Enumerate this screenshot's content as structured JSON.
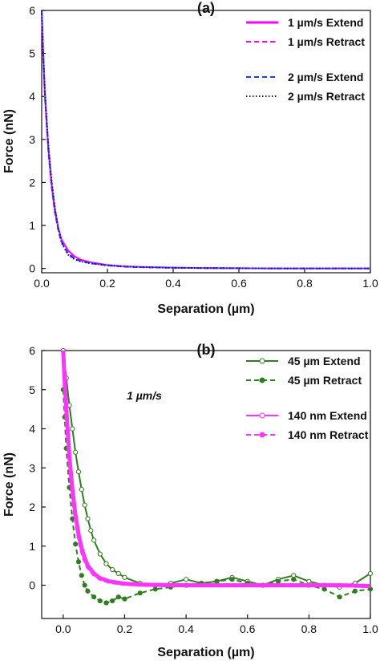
{
  "chart_data": [
    {
      "type": "line",
      "title": "(a)",
      "xlabel": "Separation (µm)",
      "ylabel": "Force (nN)",
      "xlim": [
        0,
        1
      ],
      "ylim": [
        -0.1,
        6
      ],
      "xticks": [
        0.0,
        0.2,
        0.4,
        0.6,
        0.8,
        1.0
      ],
      "xtick_labels": [
        "0.0",
        "0.2",
        "0.4",
        "0.6",
        "0.8",
        "1.0"
      ],
      "yticks": [
        0,
        1,
        2,
        3,
        4,
        5,
        6
      ],
      "ytick_labels": [
        "0",
        "1",
        "2",
        "3",
        "4",
        "5",
        "6"
      ],
      "grid": false,
      "legend_position": "top-right",
      "series": [
        {
          "name": "1 µm/s Extend",
          "color": "#ff00ff",
          "style": "solid",
          "x": [
            0.0,
            0.005,
            0.01,
            0.02,
            0.03,
            0.04,
            0.05,
            0.06,
            0.08,
            0.1,
            0.12,
            0.15,
            0.2,
            0.25,
            0.3,
            0.4,
            0.5,
            0.6,
            0.7,
            0.8,
            0.9,
            1.0
          ],
          "y": [
            6.0,
            4.9,
            4.0,
            2.8,
            1.95,
            1.35,
            0.95,
            0.68,
            0.42,
            0.28,
            0.2,
            0.14,
            0.08,
            0.05,
            0.035,
            0.02,
            0.01,
            0.005,
            0.0,
            0.0,
            0.0,
            0.0
          ]
        },
        {
          "name": "1 µm/s Retract",
          "color": "#ff00ff",
          "style": "dashed",
          "x": [
            0.0,
            0.005,
            0.01,
            0.02,
            0.03,
            0.04,
            0.05,
            0.06,
            0.08,
            0.1,
            0.12,
            0.15,
            0.2,
            0.25,
            0.3,
            0.4,
            0.5,
            0.6,
            0.7,
            0.8,
            0.9,
            1.0
          ],
          "y": [
            6.0,
            4.85,
            3.95,
            2.75,
            1.9,
            1.3,
            0.9,
            0.62,
            0.38,
            0.25,
            0.18,
            0.12,
            0.07,
            0.04,
            0.03,
            0.015,
            0.008,
            0.004,
            0.0,
            0.0,
            0.0,
            0.0
          ]
        },
        {
          "name": "2 µm/s Extend",
          "color": "#1f3cff",
          "style": "dashed",
          "x": [
            0.0,
            0.005,
            0.01,
            0.02,
            0.03,
            0.04,
            0.05,
            0.06,
            0.08,
            0.1,
            0.12,
            0.15,
            0.2,
            0.25,
            0.3,
            0.4,
            0.5,
            0.6,
            0.7,
            0.8,
            0.9,
            1.0
          ],
          "y": [
            6.0,
            4.95,
            4.05,
            2.85,
            2.0,
            1.4,
            0.95,
            0.62,
            0.34,
            0.22,
            0.17,
            0.12,
            0.075,
            0.045,
            0.03,
            0.015,
            0.008,
            0.004,
            0.0,
            0.0,
            0.0,
            0.0
          ]
        },
        {
          "name": "2 µm/s Retract",
          "color": "#0a1a8c",
          "style": "dotted",
          "x": [
            0.0,
            0.005,
            0.01,
            0.02,
            0.03,
            0.04,
            0.05,
            0.06,
            0.08,
            0.1,
            0.12,
            0.15,
            0.2,
            0.25,
            0.3,
            0.4,
            0.5,
            0.6,
            0.7,
            0.8,
            0.9,
            1.0
          ],
          "y": [
            6.0,
            5.0,
            4.1,
            2.9,
            2.05,
            1.42,
            0.96,
            0.6,
            0.32,
            0.21,
            0.16,
            0.115,
            0.07,
            0.045,
            0.03,
            0.015,
            0.008,
            0.004,
            0.0,
            0.0,
            0.0,
            0.0
          ]
        }
      ]
    },
    {
      "type": "line",
      "title": "(b)",
      "annotation": "1 µm/s",
      "xlabel": "Separation (µm)",
      "ylabel": "Force (nN)",
      "xlim": [
        -0.07,
        1.0
      ],
      "ylim": [
        -0.85,
        6
      ],
      "xticks": [
        0.0,
        0.2,
        0.4,
        0.6,
        0.8,
        1.0
      ],
      "xtick_labels": [
        "0.0",
        "0.2",
        "0.4",
        "0.6",
        "0.8",
        "1.0"
      ],
      "yticks": [
        0,
        1,
        2,
        3,
        4,
        5,
        6
      ],
      "ytick_labels": [
        "0",
        "1",
        "2",
        "3",
        "4",
        "5",
        "6"
      ],
      "grid": false,
      "legend_position": "top-right",
      "series": [
        {
          "name": "45 µm Extend",
          "color": "#2e7d1e",
          "style": "solid-open-circles",
          "x": [
            0.0,
            0.01,
            0.02,
            0.03,
            0.04,
            0.05,
            0.06,
            0.07,
            0.08,
            0.09,
            0.1,
            0.12,
            0.14,
            0.16,
            0.18,
            0.2,
            0.25,
            0.3,
            0.35,
            0.4,
            0.45,
            0.5,
            0.55,
            0.6,
            0.65,
            0.7,
            0.75,
            0.8,
            0.85,
            0.9,
            0.95,
            1.0
          ],
          "y": [
            6.0,
            5.3,
            4.6,
            4.0,
            3.4,
            2.9,
            2.45,
            2.05,
            1.7,
            1.4,
            1.15,
            0.8,
            0.55,
            0.4,
            0.3,
            0.2,
            0.05,
            0.0,
            0.05,
            0.15,
            0.05,
            0.1,
            0.2,
            0.1,
            0.0,
            0.15,
            0.25,
            0.1,
            0.0,
            -0.05,
            0.05,
            0.3
          ]
        },
        {
          "name": "45 µm Retract",
          "color": "#2e7d1e",
          "style": "dashed-filled-circles",
          "x": [
            0.0,
            0.005,
            0.01,
            0.02,
            0.03,
            0.04,
            0.05,
            0.06,
            0.07,
            0.08,
            0.1,
            0.12,
            0.14,
            0.16,
            0.18,
            0.2,
            0.25,
            0.3,
            0.35,
            0.4,
            0.45,
            0.5,
            0.55,
            0.6,
            0.65,
            0.7,
            0.75,
            0.8,
            0.85,
            0.9,
            0.95,
            1.0
          ],
          "y": [
            5.0,
            4.3,
            3.5,
            2.5,
            1.7,
            1.05,
            0.6,
            0.25,
            0.0,
            -0.15,
            -0.3,
            -0.4,
            -0.45,
            -0.4,
            -0.3,
            -0.35,
            -0.2,
            -0.1,
            -0.05,
            0.0,
            0.05,
            0.1,
            0.15,
            0.05,
            0.0,
            0.1,
            0.15,
            0.0,
            -0.1,
            -0.3,
            -0.15,
            -0.1
          ]
        },
        {
          "name": "140 nm Extend",
          "color": "#ff33ff",
          "style": "solid-open-circles",
          "x": [
            0.0,
            0.005,
            0.01,
            0.02,
            0.03,
            0.04,
            0.05,
            0.06,
            0.07,
            0.08,
            0.1,
            0.12,
            0.15,
            0.2,
            0.25,
            0.3,
            0.4,
            0.5,
            0.6,
            0.7,
            0.8,
            0.9,
            1.0
          ],
          "y": [
            6.0,
            5.2,
            4.5,
            3.3,
            2.45,
            1.8,
            1.3,
            0.95,
            0.7,
            0.5,
            0.3,
            0.18,
            0.1,
            0.04,
            0.02,
            0.01,
            0.0,
            0.0,
            0.0,
            0.0,
            0.0,
            0.0,
            -0.02
          ]
        },
        {
          "name": "140 nm Retract",
          "color": "#ff33ff",
          "style": "dashed-filled-circles",
          "x": [
            0.0,
            0.005,
            0.01,
            0.02,
            0.03,
            0.04,
            0.05,
            0.06,
            0.07,
            0.08,
            0.1,
            0.12,
            0.15,
            0.2,
            0.25,
            0.3,
            0.4,
            0.5,
            0.6,
            0.7,
            0.8,
            0.9,
            1.0
          ],
          "y": [
            6.0,
            5.15,
            4.45,
            3.25,
            2.4,
            1.75,
            1.25,
            0.9,
            0.65,
            0.47,
            0.28,
            0.17,
            0.09,
            0.035,
            0.015,
            0.005,
            0.0,
            0.0,
            0.0,
            0.0,
            0.0,
            0.0,
            -0.02
          ]
        }
      ]
    }
  ]
}
